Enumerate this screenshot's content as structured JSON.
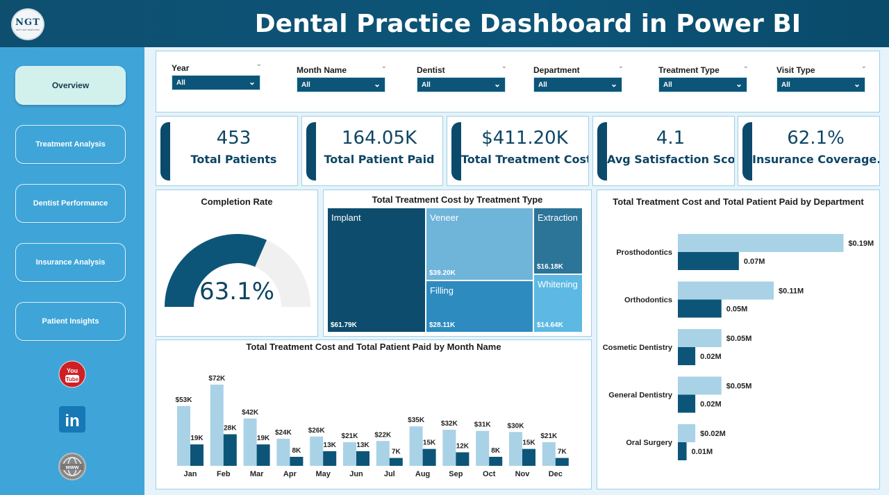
{
  "header": {
    "title": "Dental Practice Dashboard in Power BI",
    "logo_text": "NGT",
    "logo_subtext": "NEXT GEN TEMPLATES"
  },
  "sidebar": {
    "items": [
      {
        "label": "Overview",
        "active": true
      },
      {
        "label": "Treatment Analysis",
        "active": false
      },
      {
        "label": "Dentist Performance",
        "active": false
      },
      {
        "label": "Insurance Analysis",
        "active": false
      },
      {
        "label": "Patient Insights",
        "active": false
      }
    ],
    "social": [
      {
        "icon": "youtube-icon",
        "text": "You Tube"
      },
      {
        "icon": "linkedin-icon",
        "text": "in"
      },
      {
        "icon": "globe-icon",
        "text": "www"
      }
    ]
  },
  "filters": [
    {
      "label": "Year",
      "value": "All"
    },
    {
      "label": "Month Name",
      "value": "All"
    },
    {
      "label": "Dentist",
      "value": "All"
    },
    {
      "label": "Department",
      "value": "All"
    },
    {
      "label": "Treatment Type",
      "value": "All"
    },
    {
      "label": "Visit Type",
      "value": "All"
    }
  ],
  "kpis": [
    {
      "value": "453",
      "label": "Total Patients"
    },
    {
      "value": "164.05K",
      "label": "Total Patient Paid"
    },
    {
      "value": "$411.20K",
      "label": "Total Treatment Cost"
    },
    {
      "value": "4.1",
      "label": "Avg Satisfaction Score"
    },
    {
      "value": "62.1%",
      "label": "Insurance Coverage..."
    }
  ],
  "gauge": {
    "title": "Completion Rate",
    "value_label": "63.1%",
    "value": 0.631
  },
  "treemap": {
    "title": "Total Treatment Cost by Treatment Type",
    "cells": [
      {
        "name": "Implant",
        "value": "$61.79K"
      },
      {
        "name": "Veneer",
        "value": "$39.20K"
      },
      {
        "name": "Extraction",
        "value": "$16.18K"
      },
      {
        "name": "Filling",
        "value": "$28.11K"
      },
      {
        "name": "Whitening",
        "value": "$14.64K"
      }
    ]
  },
  "chart_data": [
    {
      "type": "bar",
      "title": "Total Treatment Cost and Total Patient Paid by Month Name",
      "categories": [
        "Jan",
        "Feb",
        "Mar",
        "Apr",
        "May",
        "Jun",
        "Jul",
        "Aug",
        "Sep",
        "Oct",
        "Nov",
        "Dec"
      ],
      "series": [
        {
          "values": [
            53,
            72,
            42,
            24,
            26,
            21,
            22,
            35,
            32,
            31,
            30,
            21
          ],
          "labels": [
            "$53K",
            "$72K",
            "$42K",
            "$24K",
            "$26K",
            "$21K",
            "$22K",
            "$35K",
            "$32K",
            "$31K",
            "$30K",
            "$21K"
          ],
          "color": "#a9d2e6"
        },
        {
          "values": [
            19,
            28,
            19,
            8,
            13,
            13,
            7,
            15,
            12,
            8,
            15,
            7
          ],
          "labels": [
            "19K",
            "28K",
            "19K",
            "8K",
            "13K",
            "13K",
            "7K",
            "15K",
            "12K",
            "8K",
            "15K",
            "7K"
          ],
          "color": "#0d5578"
        }
      ],
      "ylim": [
        0,
        80
      ]
    },
    {
      "type": "bar",
      "orientation": "horizontal",
      "title": "Total Treatment Cost and Total Patient Paid by Department",
      "categories": [
        "Prosthodontics",
        "Orthodontics",
        "Cosmetic Dentistry",
        "General Dentistry",
        "Oral Surgery"
      ],
      "series": [
        {
          "values": [
            0.19,
            0.11,
            0.05,
            0.05,
            0.02
          ],
          "labels": [
            "$0.19M",
            "$0.11M",
            "$0.05M",
            "$0.05M",
            "$0.02M"
          ],
          "color": "#a9d2e6"
        },
        {
          "values": [
            0.07,
            0.05,
            0.02,
            0.02,
            0.01
          ],
          "labels": [
            "0.07M",
            "0.05M",
            "0.02M",
            "0.02M",
            "0.01M"
          ],
          "color": "#0d5578"
        }
      ],
      "xlim": [
        0,
        0.2
      ]
    }
  ],
  "colors": {
    "dark": "#0d5578",
    "light": "#a9d2e6",
    "header": "#0e4f70",
    "sidebar": "#3fa5d8"
  }
}
